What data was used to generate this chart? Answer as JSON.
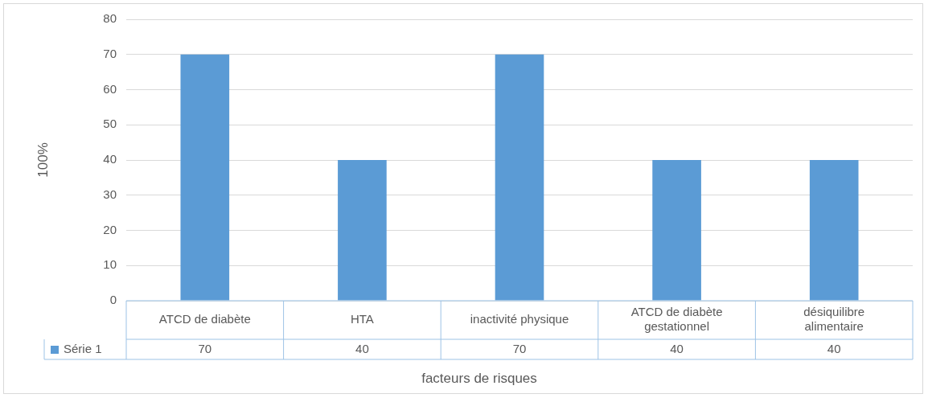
{
  "chart_data": {
    "type": "bar",
    "xlabel": "facteurs de risques",
    "ylabel": "100%",
    "categories": [
      "ATCD de diabète",
      "HTA",
      "inactivité physique",
      "ATCD de diabète gestationnel",
      "désiquilibre alimentaire"
    ],
    "series": [
      {
        "name": "Série 1",
        "color": "#5b9bd5",
        "values": [
          70,
          40,
          70,
          40,
          40
        ]
      }
    ],
    "ylim": [
      0,
      80
    ],
    "yticks": [
      0,
      10,
      20,
      30,
      40,
      50,
      60,
      70,
      80
    ],
    "grid": "y",
    "legend": "bottom",
    "data_labels": true
  }
}
